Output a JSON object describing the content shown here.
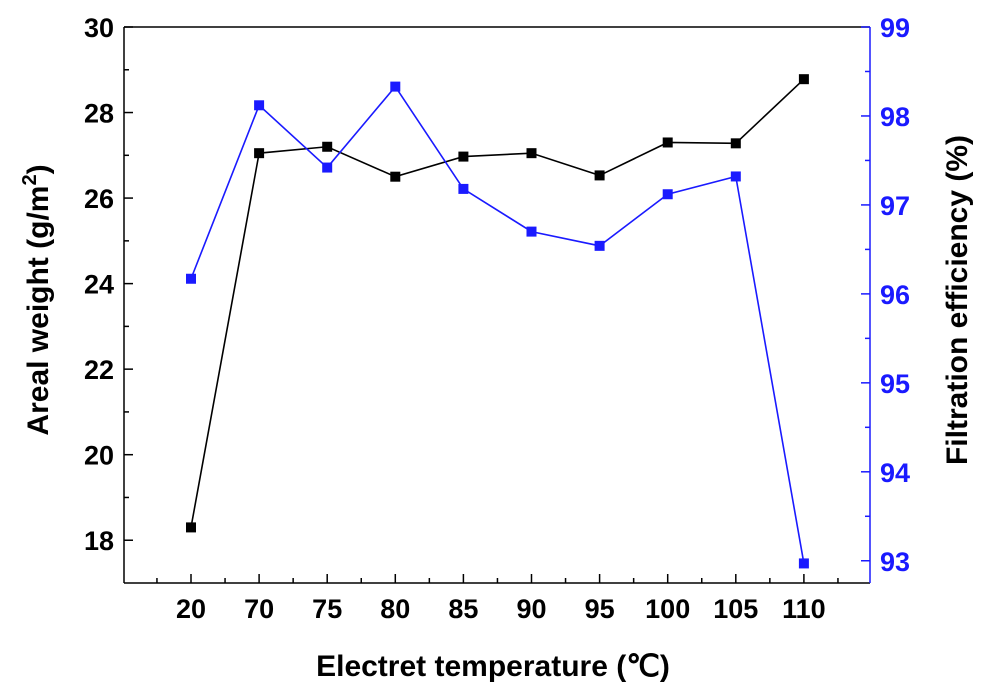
{
  "chart_data": {
    "type": "line",
    "xlabel": "Electret temperature (℃)",
    "ylabel_left": {
      "main": "Areal weight (g/m",
      "sup": "2",
      "tail": ")"
    },
    "ylabel_right": "Filtration efficiency (%)",
    "categories": [
      "20",
      "70",
      "75",
      "80",
      "85",
      "90",
      "95",
      "100",
      "105",
      "110"
    ],
    "y_left": {
      "min": 17,
      "max": 30,
      "ticks": [
        "18",
        "20",
        "22",
        "24",
        "26",
        "28",
        "30"
      ],
      "color": "#000000"
    },
    "y_right": {
      "min": 92.75,
      "max": 99,
      "ticks": [
        "93",
        "94",
        "95",
        "96",
        "97",
        "98",
        "99"
      ],
      "color": "#1a1aff"
    },
    "series": [
      {
        "axis": "left",
        "color": "#000000",
        "values": [
          18.3,
          27.05,
          27.2,
          26.5,
          26.97,
          27.05,
          26.53,
          27.3,
          27.28,
          28.78
        ]
      },
      {
        "axis": "right",
        "color": "#1a1aff",
        "values": [
          96.17,
          98.12,
          97.42,
          98.33,
          97.18,
          96.7,
          96.54,
          97.12,
          97.32,
          92.97
        ]
      }
    ],
    "grid": false,
    "legend": "none"
  }
}
